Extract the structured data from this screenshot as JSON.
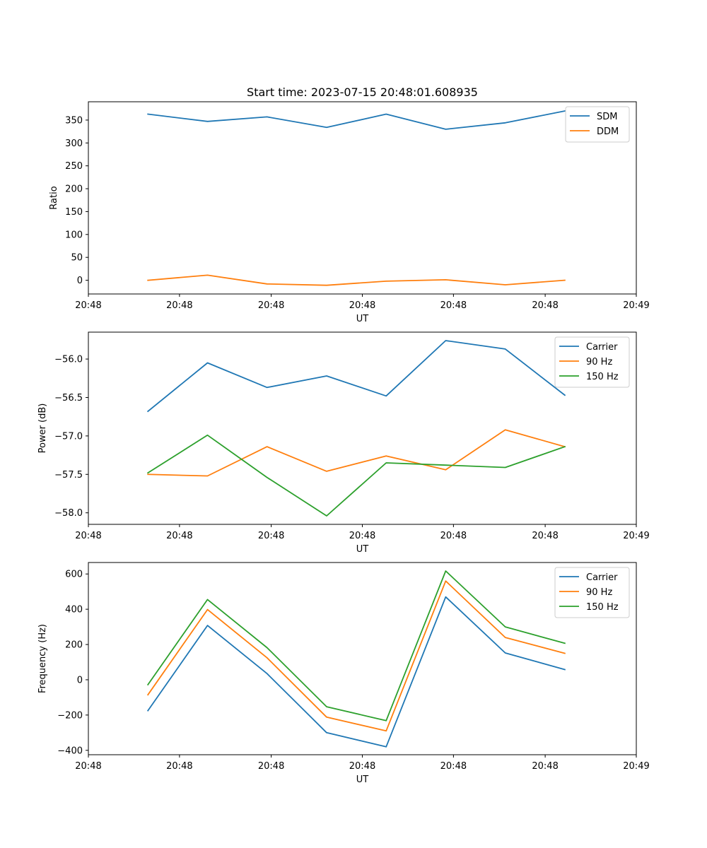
{
  "chart_data": [
    {
      "type": "line",
      "title": "Start time: 2023-07-15 20:48:01.608935",
      "xlabel": "UT",
      "ylabel": "Ratio",
      "x_tick_labels": [
        "20:48",
        "20:48",
        "20:48",
        "20:48",
        "20:48",
        "20:48",
        "20:49"
      ],
      "x": [
        1,
        2,
        3,
        4,
        5,
        6,
        7,
        8
      ],
      "xlim": [
        0,
        9.2
      ],
      "x_ticks": [
        0,
        1.53,
        3.07,
        4.6,
        6.13,
        7.67,
        9.2
      ],
      "ylim": [
        -30,
        390
      ],
      "y_ticks": [
        0,
        50,
        100,
        150,
        200,
        250,
        300,
        350
      ],
      "y_tick_labels": [
        "0",
        "50",
        "100",
        "150",
        "200",
        "250",
        "300",
        "350"
      ],
      "legend_position": "top-right",
      "series": [
        {
          "name": "SDM",
          "color": "#1f77b4",
          "values": [
            363,
            347,
            357,
            334,
            363,
            330,
            344,
            370
          ]
        },
        {
          "name": "DDM",
          "color": "#ff7f0e",
          "values": [
            0,
            11,
            -8,
            -11,
            -2,
            1,
            -10,
            0
          ]
        }
      ]
    },
    {
      "type": "line",
      "title": "",
      "xlabel": "UT",
      "ylabel": "Power (dB)",
      "x_tick_labels": [
        "20:48",
        "20:48",
        "20:48",
        "20:48",
        "20:48",
        "20:48",
        "20:49"
      ],
      "x": [
        1,
        2,
        3,
        4,
        5,
        6,
        7,
        8
      ],
      "xlim": [
        0,
        9.2
      ],
      "x_ticks": [
        0,
        1.53,
        3.07,
        4.6,
        6.13,
        7.67,
        9.2
      ],
      "ylim": [
        -58.15,
        -55.65
      ],
      "y_ticks": [
        -56.0,
        -56.5,
        -57.0,
        -57.5,
        -58.0
      ],
      "y_tick_labels": [
        "−56.0",
        "−56.5",
        "−57.0",
        "−57.5",
        "−58.0"
      ],
      "legend_position": "top-right",
      "series": [
        {
          "name": "Carrier",
          "color": "#1f77b4",
          "values": [
            -56.68,
            -56.05,
            -56.37,
            -56.22,
            -56.48,
            -55.76,
            -55.87,
            -56.47
          ]
        },
        {
          "name": "90 Hz",
          "color": "#ff7f0e",
          "values": [
            -57.5,
            -57.52,
            -57.14,
            -57.46,
            -57.26,
            -57.44,
            -56.92,
            -57.14
          ]
        },
        {
          "name": "150 Hz",
          "color": "#2ca02c",
          "values": [
            -57.48,
            -56.99,
            -57.54,
            -58.04,
            -57.35,
            -57.38,
            -57.41,
            -57.14
          ]
        }
      ]
    },
    {
      "type": "line",
      "title": "",
      "xlabel": "UT",
      "ylabel": "Frequency (Hz)",
      "x_tick_labels": [
        "20:48",
        "20:48",
        "20:48",
        "20:48",
        "20:48",
        "20:48",
        "20:49"
      ],
      "x": [
        1,
        2,
        3,
        4,
        5,
        6,
        7,
        8
      ],
      "xlim": [
        0,
        9.2
      ],
      "x_ticks": [
        0,
        1.53,
        3.07,
        4.6,
        6.13,
        7.67,
        9.2
      ],
      "ylim": [
        -425,
        665
      ],
      "y_ticks": [
        600,
        400,
        200,
        0,
        -200,
        -400
      ],
      "y_tick_labels": [
        "600",
        "400",
        "200",
        "0",
        "−200",
        "−400"
      ],
      "legend_position": "top-right",
      "series": [
        {
          "name": "Carrier",
          "color": "#1f77b4",
          "values": [
            -175,
            308,
            35,
            -300,
            -380,
            470,
            152,
            58
          ]
        },
        {
          "name": "90 Hz",
          "color": "#ff7f0e",
          "values": [
            -85,
            398,
            125,
            -212,
            -290,
            560,
            240,
            150
          ]
        },
        {
          "name": "150 Hz",
          "color": "#2ca02c",
          "values": [
            -28,
            455,
            182,
            -153,
            -232,
            617,
            300,
            207
          ]
        }
      ]
    }
  ]
}
